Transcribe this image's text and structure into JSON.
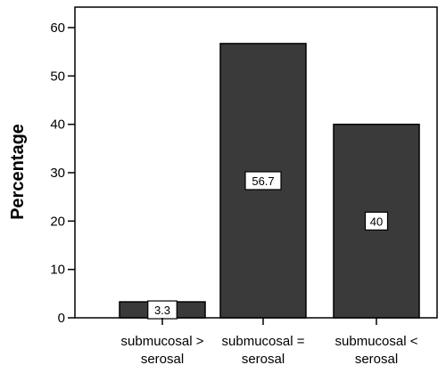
{
  "chart_data": {
    "type": "bar",
    "categories": [
      [
        "submucosal >",
        "serosal"
      ],
      [
        "submucosal =",
        "serosal"
      ],
      [
        "submucosal <",
        "serosal"
      ]
    ],
    "values": [
      3.3,
      56.7,
      40
    ],
    "data_labels": [
      "3.3",
      "56.7",
      "40"
    ],
    "title": "",
    "xlabel": "",
    "ylabel": "Percentage",
    "ylim": [
      0,
      60
    ],
    "yticks": [
      0,
      10,
      20,
      30,
      40,
      50,
      60
    ],
    "grid": false,
    "legend": "none",
    "colors": {
      "bar": "#3a3a3a",
      "bar_stroke": "#000000",
      "label_box": "#ffffff",
      "axis": "#000000"
    }
  }
}
